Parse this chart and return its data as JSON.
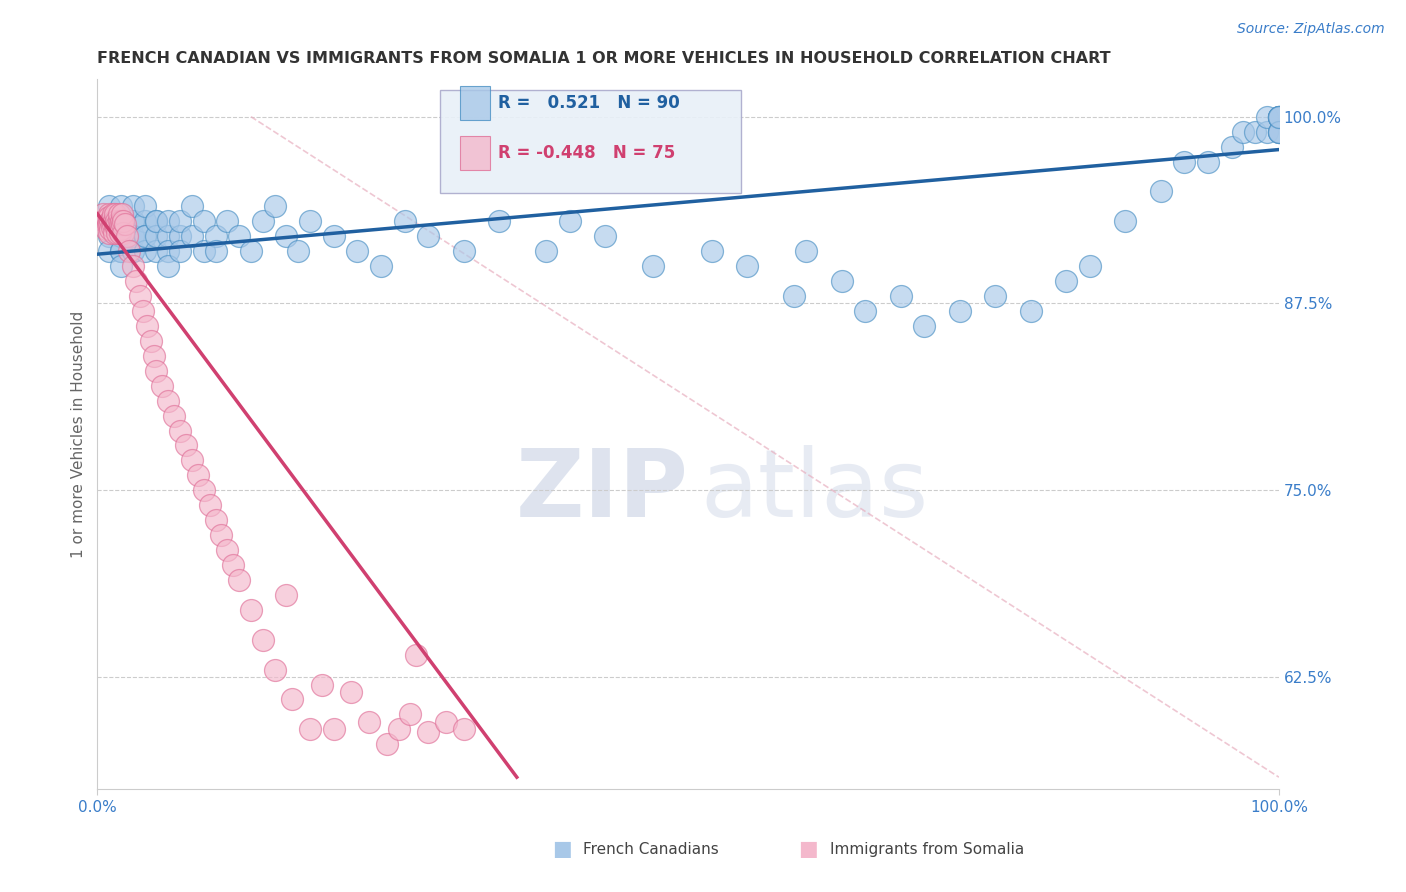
{
  "title": "FRENCH CANADIAN VS IMMIGRANTS FROM SOMALIA 1 OR MORE VEHICLES IN HOUSEHOLD CORRELATION CHART",
  "source_text": "Source: ZipAtlas.com",
  "ylabel": "1 or more Vehicles in Household",
  "xmin": 0.0,
  "xmax": 1.0,
  "ymin": 0.55,
  "ymax": 1.025,
  "blue_R": 0.521,
  "blue_N": 90,
  "pink_R": -0.448,
  "pink_N": 75,
  "blue_color": "#a8c8e8",
  "pink_color": "#f4b8cc",
  "blue_edge_color": "#4a90c4",
  "pink_edge_color": "#e07098",
  "blue_line_color": "#2060a0",
  "pink_line_color": "#d04070",
  "legend_blue_label": "French Canadians",
  "legend_pink_label": "Immigrants from Somalia",
  "watermark_zip": "ZIP",
  "watermark_atlas": "atlas",
  "right_ytick_labels": [
    "100.0%",
    "87.5%",
    "75.0%",
    "62.5%"
  ],
  "right_ytick_values": [
    1.0,
    0.875,
    0.75,
    0.625
  ],
  "grid_color": "#cccccc",
  "title_color": "#333333",
  "blue_trend_x": [
    0.0,
    1.0
  ],
  "blue_trend_y": [
    0.908,
    0.978
  ],
  "pink_trend_x": [
    0.0,
    0.355
  ],
  "pink_trend_y": [
    0.935,
    0.558
  ],
  "ref_line_x": [
    0.13,
    1.0
  ],
  "ref_line_y": [
    1.0,
    0.558
  ],
  "blue_scatter_x": [
    0.01,
    0.01,
    0.01,
    0.01,
    0.01,
    0.02,
    0.02,
    0.02,
    0.02,
    0.02,
    0.02,
    0.02,
    0.03,
    0.03,
    0.03,
    0.03,
    0.03,
    0.03,
    0.03,
    0.04,
    0.04,
    0.04,
    0.04,
    0.04,
    0.05,
    0.05,
    0.05,
    0.05,
    0.06,
    0.06,
    0.06,
    0.06,
    0.07,
    0.07,
    0.07,
    0.08,
    0.08,
    0.09,
    0.09,
    0.1,
    0.1,
    0.11,
    0.12,
    0.13,
    0.14,
    0.15,
    0.16,
    0.17,
    0.18,
    0.2,
    0.22,
    0.24,
    0.26,
    0.28,
    0.31,
    0.34,
    0.38,
    0.4,
    0.43,
    0.47,
    0.52,
    0.55,
    0.59,
    0.6,
    0.63,
    0.65,
    0.68,
    0.7,
    0.73,
    0.76,
    0.79,
    0.82,
    0.84,
    0.87,
    0.9,
    0.92,
    0.94,
    0.96,
    0.97,
    0.98,
    0.99,
    0.99,
    1.0,
    1.0,
    1.0,
    1.0,
    1.0,
    1.0,
    1.0,
    1.0
  ],
  "blue_scatter_y": [
    0.93,
    0.94,
    0.92,
    0.91,
    0.93,
    0.92,
    0.91,
    0.93,
    0.94,
    0.92,
    0.91,
    0.9,
    0.93,
    0.92,
    0.91,
    0.93,
    0.94,
    0.92,
    0.91,
    0.93,
    0.92,
    0.91,
    0.94,
    0.92,
    0.93,
    0.91,
    0.92,
    0.93,
    0.92,
    0.91,
    0.93,
    0.9,
    0.92,
    0.91,
    0.93,
    0.94,
    0.92,
    0.91,
    0.93,
    0.92,
    0.91,
    0.93,
    0.92,
    0.91,
    0.93,
    0.94,
    0.92,
    0.91,
    0.93,
    0.92,
    0.91,
    0.9,
    0.93,
    0.92,
    0.91,
    0.93,
    0.91,
    0.93,
    0.92,
    0.9,
    0.91,
    0.9,
    0.88,
    0.91,
    0.89,
    0.87,
    0.88,
    0.86,
    0.87,
    0.88,
    0.87,
    0.89,
    0.9,
    0.93,
    0.95,
    0.97,
    0.97,
    0.98,
    0.99,
    0.99,
    0.99,
    1.0,
    0.99,
    1.0,
    1.0,
    1.0,
    0.99,
    1.0,
    0.99,
    1.0
  ],
  "pink_scatter_x": [
    0.005,
    0.006,
    0.007,
    0.008,
    0.009,
    0.01,
    0.01,
    0.01,
    0.01,
    0.011,
    0.011,
    0.012,
    0.012,
    0.013,
    0.013,
    0.014,
    0.014,
    0.015,
    0.015,
    0.016,
    0.016,
    0.017,
    0.017,
    0.018,
    0.018,
    0.019,
    0.019,
    0.02,
    0.02,
    0.021,
    0.021,
    0.022,
    0.022,
    0.023,
    0.025,
    0.027,
    0.03,
    0.033,
    0.036,
    0.039,
    0.042,
    0.045,
    0.048,
    0.05,
    0.055,
    0.06,
    0.065,
    0.07,
    0.075,
    0.08,
    0.085,
    0.09,
    0.095,
    0.1,
    0.105,
    0.11,
    0.115,
    0.12,
    0.13,
    0.14,
    0.15,
    0.165,
    0.18,
    0.2,
    0.215,
    0.23,
    0.245,
    0.255,
    0.265,
    0.28,
    0.295,
    0.31,
    0.27,
    0.19,
    0.16
  ],
  "pink_scatter_y": [
    0.935,
    0.93,
    0.925,
    0.932,
    0.928,
    0.935,
    0.928,
    0.922,
    0.933,
    0.93,
    0.925,
    0.932,
    0.926,
    0.935,
    0.928,
    0.93,
    0.922,
    0.928,
    0.935,
    0.926,
    0.93,
    0.928,
    0.922,
    0.93,
    0.935,
    0.928,
    0.922,
    0.93,
    0.925,
    0.928,
    0.935,
    0.922,
    0.93,
    0.928,
    0.92,
    0.91,
    0.9,
    0.89,
    0.88,
    0.87,
    0.86,
    0.85,
    0.84,
    0.83,
    0.82,
    0.81,
    0.8,
    0.79,
    0.78,
    0.77,
    0.76,
    0.75,
    0.74,
    0.73,
    0.72,
    0.71,
    0.7,
    0.69,
    0.67,
    0.65,
    0.63,
    0.61,
    0.59,
    0.59,
    0.615,
    0.595,
    0.58,
    0.59,
    0.6,
    0.588,
    0.595,
    0.59,
    0.64,
    0.62,
    0.68
  ]
}
